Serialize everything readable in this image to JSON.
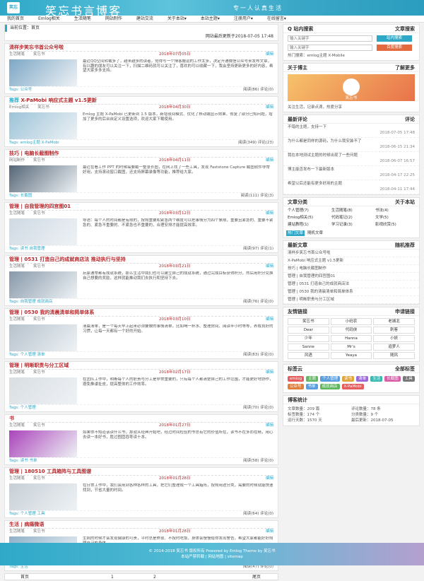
{
  "header": {
    "logo_text": "笑忘",
    "site_name": "笑忘书言博客",
    "motto": "专一人认真生活"
  },
  "nav": [
    "我的首页",
    "Emlog相关",
    "生活随笔",
    "网站制作",
    "建站交流",
    "关于本站▾",
    "本站主题▾",
    "注册用户▾",
    "在线留言▾"
  ],
  "main": {
    "crumb": "当前位置：首页",
    "update_note": "网站最后更新于2018-07-05 17:48",
    "articles": [
      {
        "title": "清样步笑忘书首公众号啦",
        "cat": "生活随笔",
        "author": "笑忘书",
        "date": "2018年07月05日",
        "edit": "编辑",
        "excerpt": "最近QQ空间转载多了，越来越多的读者，觉得写一个博客搬运的工作太多，决定开通微信公众号来发布文章，有兴趣的朋友可以关注一下，扫描二维码就可以关注了，喜欢的可以收藏一下，我会坚持更新更多的好内容，希望大家多多支持。",
        "tags": "Tags: 公众号",
        "read": "阅读(86) 评论(0)"
      },
      {
        "title": "X-PaMobi 响应式主题 v1.5更新",
        "prefix": "推荐",
        "cat": "Emlog相关",
        "author": "笑忘书",
        "date": "2018年04月30日",
        "edit": "编辑",
        "excerpt": "Emlog 主题 X-PaMobi 已更新到 1.5 版本，新增夜间模式、优化了移动端显示效果、修复了部分已知问题，增加了更多的后台自定义设置选项，欢迎大家下载使用。",
        "tags": "Tags: emlog主题 X-PaMobi",
        "read": "阅读(349) 评论(23)"
      },
      {
        "title": "技巧 | 电脑长截图制作",
        "cat": "网站制作",
        "author": "笑忘书",
        "date": "2018年04月11日",
        "edit": "编辑",
        "excerpt": "最近在看工作 PPT 的时候需要截一整张长图，在网上找了一些工具，发现 Faststone Capture 截图软件非常好用，支持滚动窗口截图，还支持屏幕录像等功能，推荐给大家。",
        "tags": "Tags: 长截图",
        "read": "阅读(111) 评论(3)"
      },
      {
        "title": "管理 | 自我管理的四宫图01",
        "cat": "生活随笔",
        "author": "笑忘书",
        "date": "2018年03月12日",
        "edit": "编辑",
        "excerpt": "导语：每个人的时间都是有限的，按照重要和紧急两个维度可以把事情分为四个象限，重要且紧急的、重要不紧急的、紧急不重要的、不紧急也不重要的，合理安排才能提高效率。",
        "tags": "Tags: 读书 自我管理",
        "read": "阅读(97) 评论(1)"
      },
      {
        "title": "管理 | 0531 打造自己的成就商店法 推动执行与坚持",
        "cat": "生活随笔",
        "author": "笑忘书",
        "date": "2018年03月21日",
        "edit": "编辑",
        "excerpt": "玩家通常都有成就系统，那么生活中我们也可以建立自己的成就系统，通过完成目标获得积分，然后用积分兑换自己想要的奖励，这样就能推动我们去执行和坚持下去。",
        "tags": "Tags: 自我管理 成就商店",
        "read": "阅读(76) 评论(0)"
      },
      {
        "title": "管理 | 0530 我的清晨清单和简单体系",
        "cat": "生活随笔",
        "author": "笑忘书",
        "date": "2018年03月10日",
        "edit": "编辑",
        "excerpt": "清晨清单，是一个每天早上起来必须要做的事情清单，比如喝一杯水、整理房间、阅读半小时等等，养成良好的习惯，让每一天都有一个好的开始。",
        "tags": "Tags: 个人管理 清单",
        "read": "阅读(83) 评论(0)"
      },
      {
        "title": "管理 | 明晰职责与分工区域",
        "cat": "生活随笔",
        "author": "笑忘书",
        "date": "2018年02月17日",
        "edit": "编辑",
        "excerpt": "在团队工作中，明晰每个人的职责与分工是非常重要的，只有每个人都清楚自己的工作范围，才能更好地协作，避免推诿扯皮，提高整体的工作效率。",
        "tags": "Tags: 个人管理",
        "read": "阅读(70) 评论(0)"
      },
      {
        "title": "书",
        "cat": "生活随笔",
        "author": "笑忘书",
        "date": "2018年01月27日",
        "edit": "编辑",
        "excerpt": "如果你不知道该读什么书，那就从经典开始吧，经过时间检验的书总有它的价值所在，读书不在多而在精，用心去读一本好书，胜过囫囵吞枣读十本。",
        "tags": "Tags: 读书 书单",
        "read": "阅读(58) 评论(0)"
      },
      {
        "title": "管理 | 180510 工具箱阵与工具图谱",
        "cat": "生活随笔",
        "author": "笑忘书",
        "date": "2018年01月28日",
        "edit": "编辑",
        "excerpt": "在日常工作中，我们会用到各种各样的工具，把它们整理成一个工具箱阵，按照用途分类，需要的时候就能快速找到，节省大量的时间。",
        "tags": "Tags: 个人管理 工具",
        "read": "阅读(64) 评论(0)"
      },
      {
        "title": "生活 | 病痛微语",
        "cat": "生活随笔",
        "author": "笑忘书",
        "date": "2018年01月28日",
        "edit": "编辑",
        "excerpt": "生病的时候才会发现健康的可贵，平时总是熬夜、不按时吃饭，身体会慢慢给你发出警告，希望大家都能好好照顾自己的身体。",
        "tags": "Tags: 生活",
        "read": "阅读(47) 评论(0)"
      }
    ],
    "pager": {
      "first": "首页",
      "p1": "1",
      "p2": "2",
      "last": "尾页"
    }
  },
  "sidebar": {
    "search_title": "Q 站内搜索",
    "search_right": "文章搜索",
    "search_placeholder": "输入关键字",
    "search_btn": "站内搜索",
    "search_placeholder2": "输入关键字",
    "search_btn2": "百度搜索",
    "search_tip": "热门搜索：emlog主题 X-Mobile",
    "about_title": "关于博主",
    "about_right": "了解更多",
    "about_name": "笑忘书",
    "about_text": "关注生活，记录点滴，热爱分享",
    "comment_title": "最新评论",
    "comment_right": "评论",
    "comments": [
      {
        "text": "不错的主题，支持一下",
        "time": "2018-07-05 17:48"
      },
      {
        "text": "为什么都是同样的源码，为什么我安装不了",
        "time": "2018-06-15 21:34"
      },
      {
        "text": "我在本地测试主题的时候出现了一些问题",
        "time": "2018-06-07 16:57"
      },
      {
        "text": "博主能否发布一下最新版本",
        "time": "2018-04-17 22:25"
      },
      {
        "text": "希望以后还能有更多好用的主题",
        "time": "2018-04-11 17:44"
      }
    ],
    "nav_title": "文章分类",
    "nav_right": "关于本站",
    "cats": [
      "个人管理(7)",
      "生活随笔(8)",
      "书法(4)",
      "Emlog相关(5)",
      "代码笔记(2)",
      "文学(5)",
      "建站教程(1)",
      "学习记录(3)",
      "影视欣赏(5)"
    ],
    "tab_hot": "热门文章",
    "tab_rand": "随机文章",
    "latest_title": "最新文章",
    "latest_right": "随机推荐",
    "latest": [
      "清样步笑忘书首公众号啦",
      "X-PaMobi 响应式主题 v1.5更新",
      "技巧 | 电脑长截图制作",
      "管理 | 自我管理的四宫图01",
      "管理 | 0531 打造自己的成就商店法",
      "管理 | 0530 我的清晨清单和简单体系",
      "管理 | 明晰职责与分工区域"
    ],
    "links_title": "友情链接",
    "links_right": "申请链接",
    "links": [
      "笑忘书",
      "小码农",
      "老城北",
      "Dear",
      "代码侠",
      "刺客",
      "少年",
      "Hanna",
      "小妖",
      "Sanne",
      "Mr's",
      "追梦人",
      "风语",
      "Yeaya",
      "随风"
    ],
    "tags_title": "标签云",
    "tags_right": "全部标签",
    "tags": [
      {
        "t": "emlog",
        "c": "#e55d5d"
      },
      {
        "t": "主题",
        "c": "#5fb85f"
      },
      {
        "t": "个人管理",
        "c": "#5a9ee0"
      },
      {
        "t": "读书",
        "c": "#e0a63c"
      },
      {
        "t": "清单",
        "c": "#9a6bd6"
      },
      {
        "t": "生活",
        "c": "#3bb8b0"
      },
      {
        "t": "长截图",
        "c": "#d65fa8"
      },
      {
        "t": "工具",
        "c": "#777777"
      },
      {
        "t": "公众号",
        "c": "#e07f3c"
      },
      {
        "t": "书单",
        "c": "#5a9ee0"
      },
      {
        "t": "成就商店",
        "c": "#5fb85f"
      },
      {
        "t": "X-PaMobi",
        "c": "#e55d5d"
      }
    ],
    "stats_title": "博客统计",
    "stats": [
      "文章数量：209 篇",
      "评论数量：78 条",
      "标签数量：174 个",
      "分类数量：9 个",
      "运行天数：1570 天",
      "最后更新：2018-07-05"
    ]
  },
  "footer": {
    "line1": "© 2014-2018 笑忘书 版权所有 Powered by Emlog Theme by 笑忘书",
    "line2": "本站严禁转载 | 网站地图 | sitemap"
  }
}
